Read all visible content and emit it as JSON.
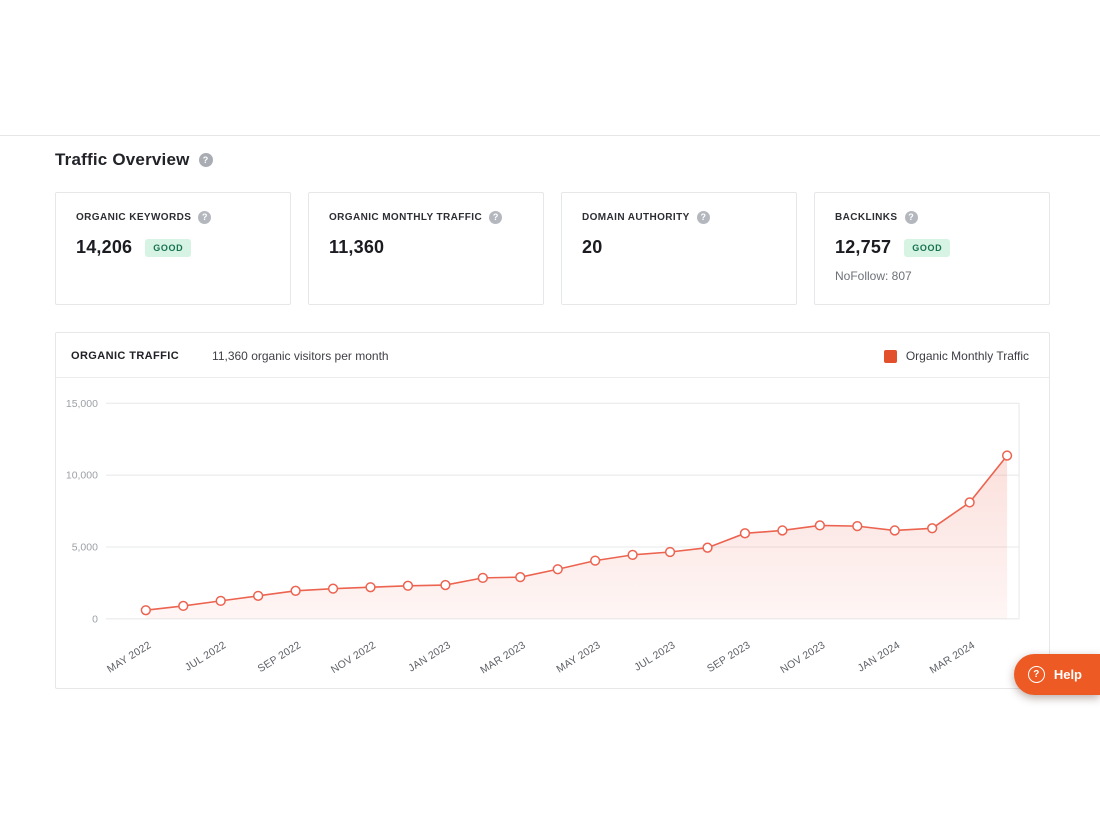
{
  "colors": {
    "accent": "#e2502c",
    "line": "#ec6350",
    "help": "#ed5a24",
    "badge_bg": "#d7f3e4",
    "badge_text": "#157350"
  },
  "icons": {
    "question": "?"
  },
  "header": {
    "title": "Traffic Overview"
  },
  "stats": [
    {
      "label": "ORGANIC KEYWORDS",
      "value": "14,206",
      "badge": "GOOD"
    },
    {
      "label": "ORGANIC MONTHLY TRAFFIC",
      "value": "11,360"
    },
    {
      "label": "DOMAIN AUTHORITY",
      "value": "20"
    },
    {
      "label": "BACKLINKS",
      "value": "12,757",
      "badge": "GOOD",
      "note": "NoFollow: 807"
    }
  ],
  "chart": {
    "title": "ORGANIC TRAFFIC",
    "subtitle": "11,360 organic visitors per month",
    "legend_label": "Organic Monthly Traffic"
  },
  "chart_data": {
    "type": "line",
    "title": "Organic Traffic",
    "x": [
      "May 2022",
      "Jun 2022",
      "Jul 2022",
      "Aug 2022",
      "Sep 2022",
      "Oct 2022",
      "Nov 2022",
      "Dec 2022",
      "Jan 2023",
      "Feb 2023",
      "Mar 2023",
      "Apr 2023",
      "May 2023",
      "Jun 2023",
      "Jul 2023",
      "Aug 2023",
      "Sep 2023",
      "Oct 2023",
      "Nov 2023",
      "Dec 2023",
      "Jan 2024",
      "Feb 2024",
      "Mar 2024",
      "Apr 2024"
    ],
    "series": [
      {
        "name": "Organic Monthly Traffic",
        "values": [
          600,
          900,
          1250,
          1600,
          1950,
          2100,
          2200,
          2300,
          2350,
          2850,
          2900,
          3450,
          4050,
          4450,
          4650,
          4950,
          5950,
          6150,
          6500,
          6450,
          6150,
          6300,
          8100,
          11360
        ]
      }
    ],
    "x_tick_labels": [
      "MAY 2022",
      "JUL 2022",
      "SEP 2022",
      "NOV 2022",
      "JAN 2023",
      "MAR 2023",
      "MAY 2023",
      "JUL 2023",
      "SEP 2023",
      "NOV 2023",
      "JAN 2024",
      "MAR 2024"
    ],
    "x_tick_every": 2,
    "ylim": [
      0,
      15000
    ],
    "ytick_values": [
      0,
      5000,
      10000,
      15000
    ],
    "ytick_labels": [
      "0",
      "5,000",
      "10,000",
      "15,000"
    ],
    "grid": "horizontal",
    "legend_position": "top-right"
  },
  "help_button": {
    "label": "Help"
  }
}
